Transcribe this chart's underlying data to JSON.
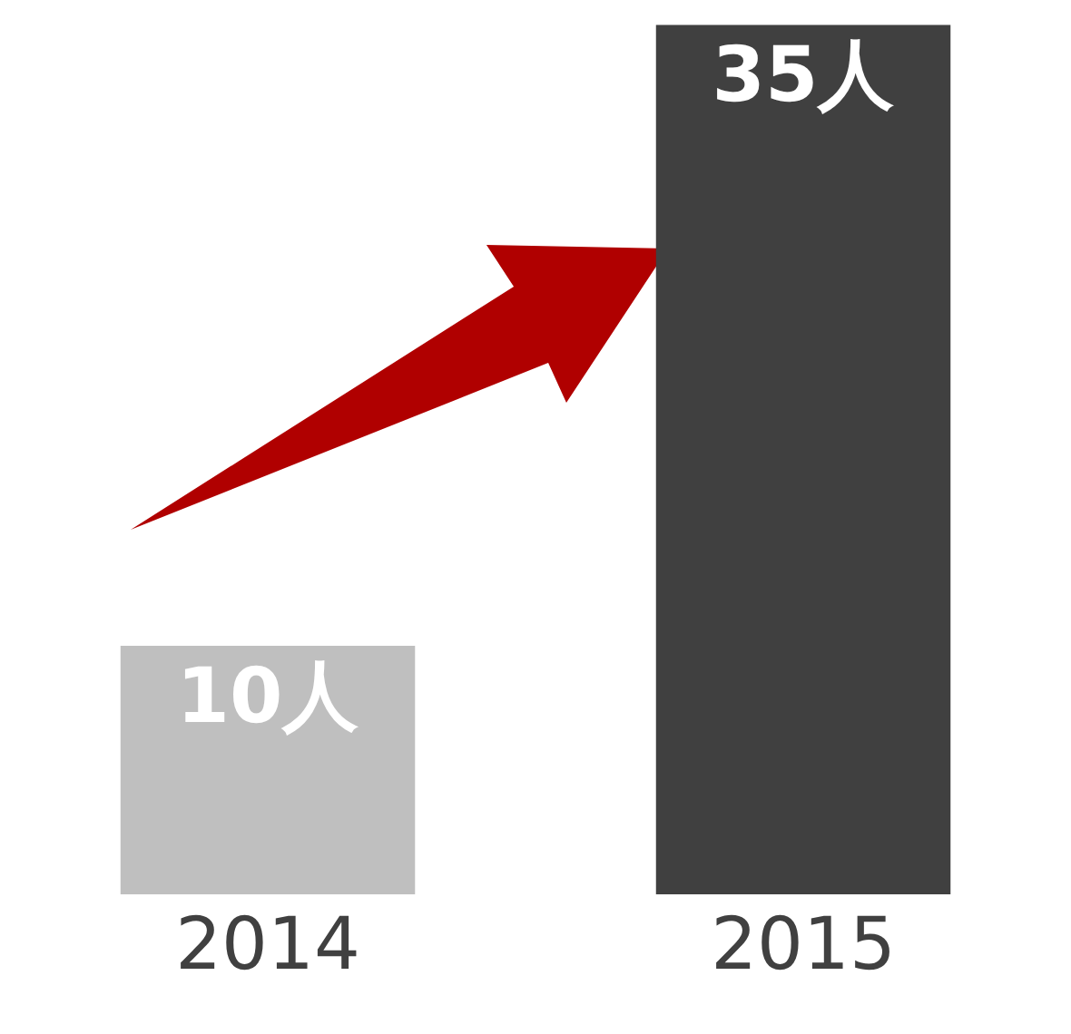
{
  "chart_data": {
    "type": "bar",
    "categories": [
      "2014",
      "2015"
    ],
    "values": [
      10,
      35
    ],
    "value_labels": [
      "10人",
      "35人"
    ],
    "colors": [
      "#bfbfbf",
      "#404040"
    ],
    "ylim": [
      0,
      36
    ],
    "tick_labels": "x"
  }
}
